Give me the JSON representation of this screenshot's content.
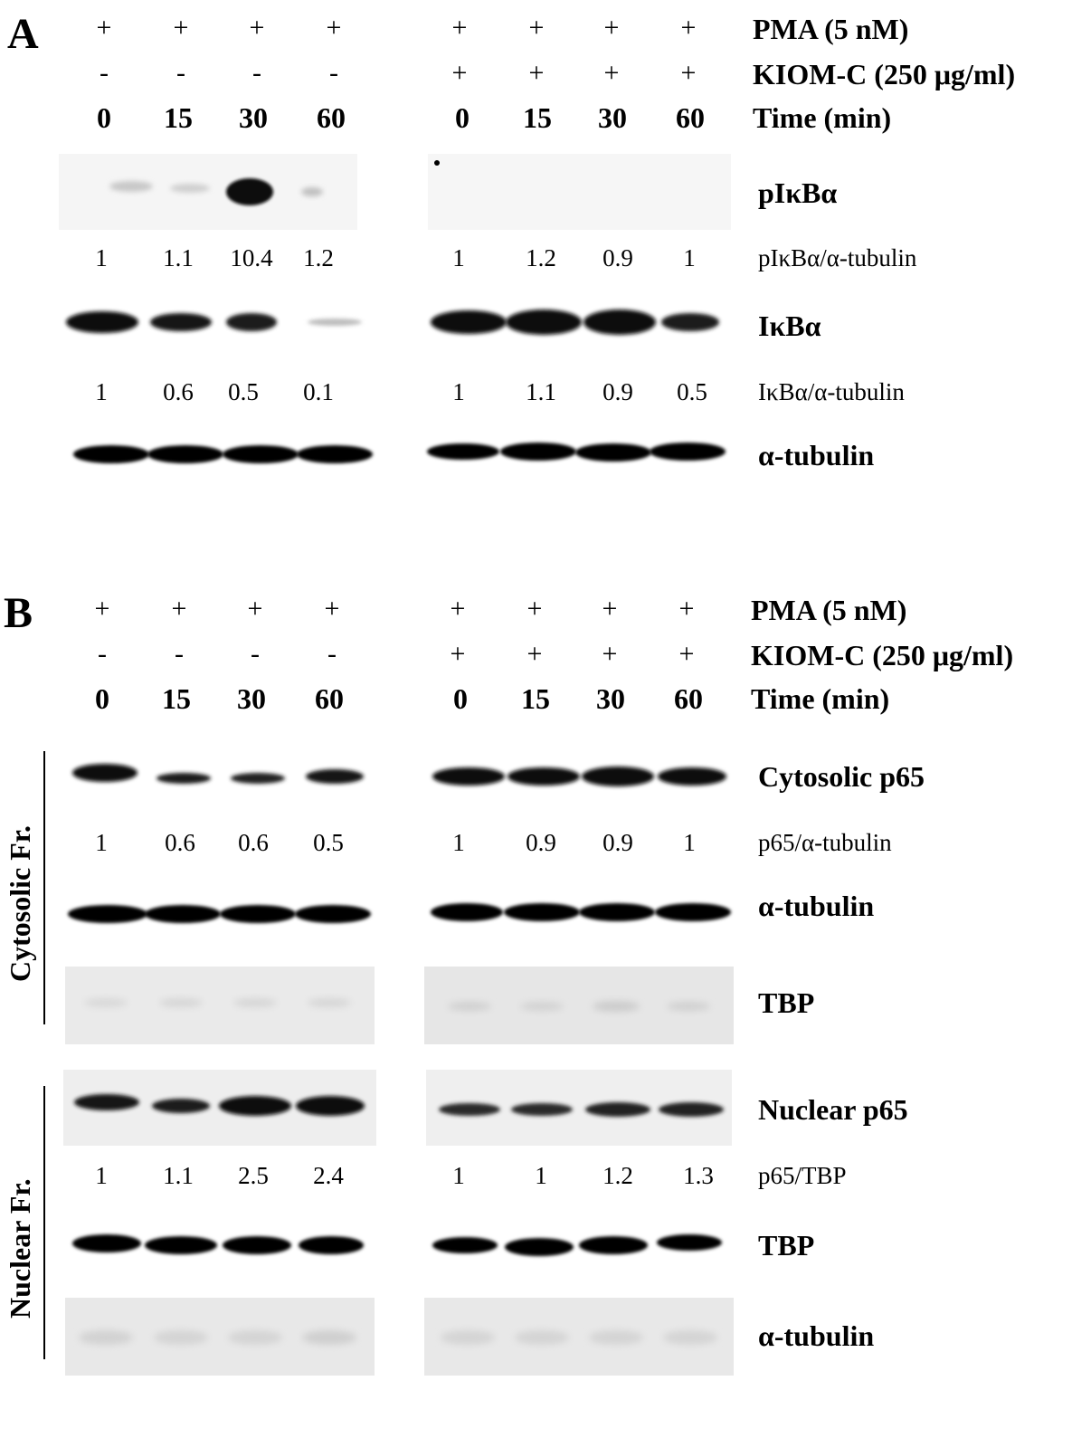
{
  "panel_a": {
    "letter": "A",
    "pma": [
      "+",
      "+",
      "+",
      "+",
      "+",
      "+",
      "+",
      "+"
    ],
    "kiom": [
      "-",
      "-",
      "-",
      "-",
      "+",
      "+",
      "+",
      "+"
    ],
    "time": [
      "0",
      "15",
      "30",
      "60",
      "0",
      "15",
      "30",
      "60"
    ],
    "header_pma": "PMA (5 nM)",
    "header_kiom": "KIOM-C (250 μg/ml)",
    "header_time": "Time (min)",
    "blot_pikba": "pIκBα",
    "quant_pikba": [
      "1",
      "1.1",
      "10.4",
      "1.2",
      "1",
      "1.2",
      "0.9",
      "1"
    ],
    "quant_pikba_label": "pIκBα/α-tubulin",
    "blot_ikba": "IκBα",
    "quant_ikba": [
      "1",
      "0.6",
      "0.5",
      "0.1",
      "1",
      "1.1",
      "0.9",
      "0.5"
    ],
    "quant_ikba_label": "IκBα/α-tubulin",
    "blot_tubulin": "α-tubulin"
  },
  "panel_b": {
    "letter": "B",
    "pma": [
      "+",
      "+",
      "+",
      "+",
      "+",
      "+",
      "+",
      "+"
    ],
    "kiom": [
      "-",
      "-",
      "-",
      "-",
      "+",
      "+",
      "+",
      "+"
    ],
    "time": [
      "0",
      "15",
      "30",
      "60",
      "0",
      "15",
      "30",
      "60"
    ],
    "header_pma": "PMA (5 nM)",
    "header_kiom": "KIOM-C (250 μg/ml)",
    "header_time": "Time (min)",
    "cytosolic_label": "Cytosolic Fr.",
    "nuclear_label": "Nuclear Fr.",
    "blot_cyto_p65": "Cytosolic p65",
    "quant_cyto": [
      "1",
      "0.6",
      "0.6",
      "0.5",
      "1",
      "0.9",
      "0.9",
      "1"
    ],
    "quant_cyto_label": "p65/α-tubulin",
    "blot_cyto_tubulin": "α-tubulin",
    "blot_cyto_tbp": "TBP",
    "blot_nuc_p65": "Nuclear p65",
    "quant_nuc": [
      "1",
      "1.1",
      "2.5",
      "2.4",
      "1",
      "1",
      "1.2",
      "1.3"
    ],
    "quant_nuc_label": "p65/TBP",
    "blot_nuc_tbp": "TBP",
    "blot_nuc_tubulin": "α-tubulin"
  }
}
